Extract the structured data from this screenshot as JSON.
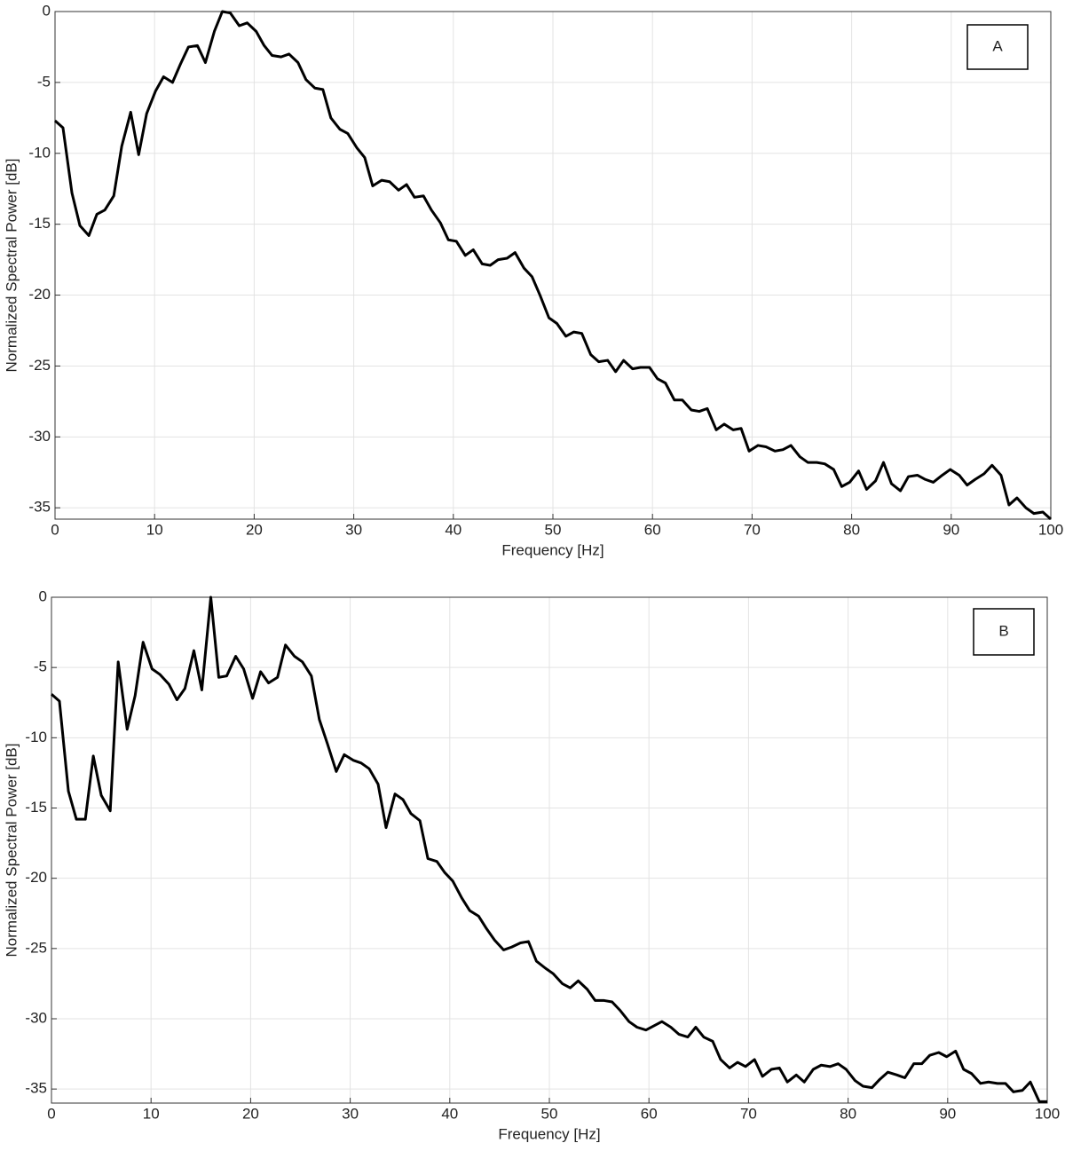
{
  "chart_data": [
    {
      "type": "line",
      "annotation": "A",
      "xlabel": "Frequency [Hz]",
      "ylabel": "Normalized Spectral Power [dB]",
      "xlim": [
        0,
        100
      ],
      "ylim": [
        -35.8,
        0
      ],
      "xticks": [
        0,
        10,
        20,
        30,
        40,
        50,
        60,
        70,
        80,
        90,
        100
      ],
      "yticks": [
        -35,
        -30,
        -25,
        -20,
        -15,
        -10,
        -5,
        0
      ],
      "grid": true,
      "x": [
        0,
        0.8,
        1.7,
        2.5,
        3.4,
        4.2,
        5.0,
        5.9,
        6.7,
        7.6,
        8.4,
        9.2,
        10.1,
        10.9,
        11.8,
        12.6,
        13.4,
        14.3,
        15.1,
        16.0,
        16.8,
        17.6,
        18.5,
        19.3,
        20.2,
        21.0,
        21.8,
        22.7,
        23.5,
        24.4,
        25.2,
        26.1,
        26.9,
        27.7,
        28.6,
        29.4,
        30.3,
        31.1,
        31.9,
        32.8,
        33.6,
        34.5,
        35.3,
        36.1,
        37.0,
        37.8,
        38.7,
        39.5,
        40.3,
        41.2,
        42.0,
        42.9,
        43.7,
        44.5,
        45.4,
        46.2,
        47.1,
        47.9,
        48.7,
        49.6,
        50.4,
        51.3,
        52.1,
        52.9,
        53.8,
        54.6,
        55.5,
        56.3,
        57.1,
        58.0,
        58.8,
        59.7,
        60.5,
        61.3,
        62.2,
        63.0,
        63.9,
        64.7,
        65.5,
        66.4,
        67.2,
        68.1,
        68.9,
        69.7,
        70.6,
        71.4,
        72.3,
        73.1,
        73.9,
        74.8,
        75.6,
        76.5,
        77.3,
        78.2,
        79.0,
        79.8,
        80.7,
        81.5,
        82.4,
        83.2,
        84.0,
        84.9,
        85.7,
        86.6,
        87.4,
        88.2,
        89.1,
        89.9,
        90.8,
        91.6,
        92.4,
        93.3,
        94.1,
        95.0,
        95.8,
        96.6,
        97.5,
        98.3,
        99.2,
        100.0
      ],
      "series": [
        {
          "color": "#000000",
          "values": [
            -7.7,
            -8.2,
            -12.8,
            -15.1,
            -15.8,
            -14.3,
            -14.0,
            -13.0,
            -9.5,
            -7.1,
            -10.1,
            -7.2,
            -5.6,
            -4.6,
            -5.0,
            -3.7,
            -2.5,
            -2.4,
            -3.6,
            -1.4,
            0,
            -0.1,
            -1.0,
            -0.8,
            -1.4,
            -2.4,
            -3.1,
            -3.2,
            -3.0,
            -3.6,
            -4.8,
            -5.4,
            -5.5,
            -7.5,
            -8.3,
            -8.6,
            -9.6,
            -10.3,
            -12.3,
            -11.9,
            -12.0,
            -12.6,
            -12.2,
            -13.1,
            -13.0,
            -14.0,
            -14.9,
            -16.1,
            -16.2,
            -17.2,
            -16.8,
            -17.8,
            -17.9,
            -17.5,
            -17.4,
            -17.0,
            -18.1,
            -18.7,
            -20.0,
            -21.6,
            -22.0,
            -22.9,
            -22.6,
            -22.7,
            -24.2,
            -24.7,
            -24.6,
            -25.4,
            -24.6,
            -25.2,
            -25.1,
            -25.1,
            -25.9,
            -26.2,
            -27.4,
            -27.4,
            -28.1,
            -28.2,
            -28.0,
            -29.5,
            -29.1,
            -29.5,
            -29.4,
            -31.0,
            -30.6,
            -30.7,
            -31.0,
            -30.9,
            -30.6,
            -31.4,
            -31.8,
            -31.8,
            -31.9,
            -32.3,
            -33.5,
            -33.2,
            -32.4,
            -33.7,
            -33.1,
            -31.8,
            -33.3,
            -33.8,
            -32.8,
            -32.7,
            -33.0,
            -33.2,
            -32.7,
            -32.3,
            -32.7,
            -33.4,
            -33.0,
            -32.6,
            -32.0,
            -32.7,
            -34.8,
            -34.3,
            -35.0,
            -35.4,
            -35.3,
            -35.8
          ]
        }
      ]
    },
    {
      "type": "line",
      "annotation": "B",
      "xlabel": "Frequency [Hz]",
      "ylabel": "Normalized Spectral Power [dB]",
      "xlim": [
        0,
        100
      ],
      "ylim": [
        -36,
        0
      ],
      "xticks": [
        0,
        10,
        20,
        30,
        40,
        50,
        60,
        70,
        80,
        90,
        100
      ],
      "yticks": [
        -35,
        -30,
        -25,
        -20,
        -15,
        -10,
        -5,
        0
      ],
      "grid": true,
      "x": [
        0,
        0.8,
        1.7,
        2.5,
        3.4,
        4.2,
        5.0,
        5.9,
        6.7,
        7.6,
        8.4,
        9.2,
        10.1,
        10.9,
        11.8,
        12.6,
        13.4,
        14.3,
        15.1,
        16.0,
        16.8,
        17.6,
        18.5,
        19.3,
        20.2,
        21.0,
        21.8,
        22.7,
        23.5,
        24.4,
        25.2,
        26.1,
        26.9,
        27.7,
        28.6,
        29.4,
        30.3,
        31.1,
        31.9,
        32.8,
        33.6,
        34.5,
        35.3,
        36.1,
        37.0,
        37.8,
        38.7,
        39.5,
        40.3,
        41.2,
        42.0,
        42.9,
        43.7,
        44.5,
        45.4,
        46.2,
        47.1,
        47.9,
        48.7,
        49.6,
        50.4,
        51.3,
        52.1,
        52.9,
        53.8,
        54.6,
        55.5,
        56.3,
        57.1,
        58.0,
        58.8,
        59.7,
        60.5,
        61.3,
        62.2,
        63.0,
        63.9,
        64.7,
        65.5,
        66.4,
        67.2,
        68.1,
        68.9,
        69.7,
        70.6,
        71.4,
        72.3,
        73.1,
        73.9,
        74.8,
        75.6,
        76.5,
        77.3,
        78.2,
        79.0,
        79.8,
        80.7,
        81.5,
        82.4,
        83.2,
        84.0,
        84.9,
        85.7,
        86.6,
        87.4,
        88.2,
        89.1,
        89.9,
        90.8,
        91.6,
        92.4,
        93.3,
        94.1,
        95.0,
        95.8,
        96.6,
        97.5,
        98.3,
        99.2,
        100.0
      ],
      "series": [
        {
          "color": "#000000",
          "values": [
            -6.9,
            -7.4,
            -13.8,
            -15.8,
            -15.8,
            -11.3,
            -14.1,
            -15.2,
            -4.6,
            -9.4,
            -7.0,
            -3.2,
            -5.1,
            -5.5,
            -6.2,
            -7.3,
            -6.5,
            -3.8,
            -6.6,
            0,
            -5.7,
            -5.6,
            -4.2,
            -5.1,
            -7.2,
            -5.3,
            -6.1,
            -5.7,
            -3.4,
            -4.2,
            -4.6,
            -5.6,
            -8.7,
            -10.4,
            -12.4,
            -11.2,
            -11.6,
            -11.8,
            -12.2,
            -13.3,
            -16.4,
            -14.0,
            -14.4,
            -15.4,
            -15.9,
            -18.6,
            -18.8,
            -19.6,
            -20.2,
            -21.4,
            -22.3,
            -22.7,
            -23.6,
            -24.4,
            -25.1,
            -24.9,
            -24.6,
            -24.5,
            -25.9,
            -26.4,
            -26.8,
            -27.5,
            -27.8,
            -27.3,
            -27.9,
            -28.7,
            -28.7,
            -28.8,
            -29.4,
            -30.2,
            -30.6,
            -30.8,
            -30.5,
            -30.2,
            -30.6,
            -31.1,
            -31.3,
            -30.6,
            -31.3,
            -31.6,
            -32.9,
            -33.5,
            -33.1,
            -33.4,
            -32.9,
            -34.1,
            -33.6,
            -33.5,
            -34.5,
            -34.0,
            -34.5,
            -33.6,
            -33.3,
            -33.4,
            -33.2,
            -33.6,
            -34.4,
            -34.8,
            -34.9,
            -34.3,
            -33.8,
            -34.0,
            -34.2,
            -33.2,
            -33.2,
            -32.6,
            -32.4,
            -32.7,
            -32.3,
            -33.6,
            -33.9,
            -34.6,
            -34.5,
            -34.6,
            -34.6,
            -35.2,
            -35.1,
            -34.5,
            -35.9,
            -35.9
          ]
        }
      ]
    }
  ]
}
